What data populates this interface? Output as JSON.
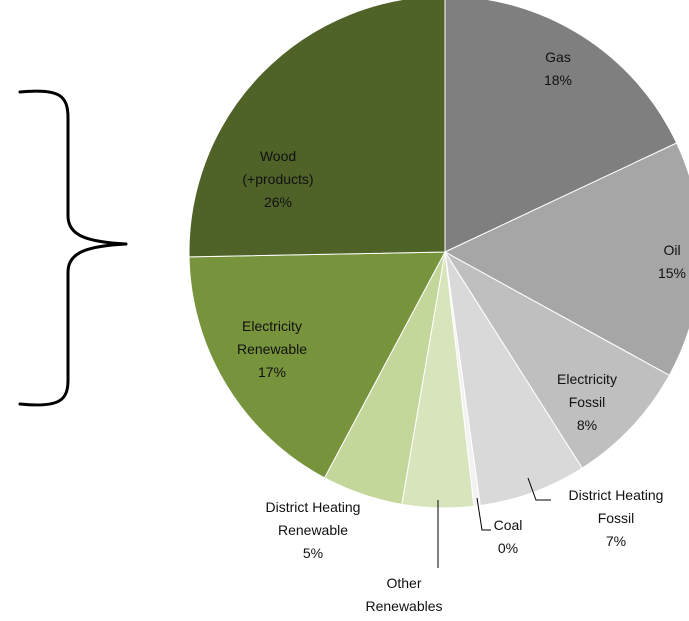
{
  "chart_data": {
    "type": "pie",
    "title": "",
    "slices": [
      {
        "name": "Gas",
        "label_lines": [
          "Gas",
          "18%"
        ],
        "percent": 18,
        "color": "#7f7f7f"
      },
      {
        "name": "Oil",
        "label_lines": [
          "Oil",
          "15%"
        ],
        "percent": 15,
        "color": "#a6a6a6"
      },
      {
        "name": "Electricity Fossil",
        "label_lines": [
          "Electricity",
          "Fossil",
          "8%"
        ],
        "percent": 8,
        "color": "#bfbfbf"
      },
      {
        "name": "District Heating Fossil",
        "label_lines": [
          "District Heating",
          "Fossil",
          "7%"
        ],
        "percent": 7,
        "color": "#d9d9d9"
      },
      {
        "name": "Coal",
        "label_lines": [
          "Coal",
          "0%"
        ],
        "percent": 0,
        "color": "#f2f2f2"
      },
      {
        "name": "Other Renewables",
        "label_lines": [
          "Other",
          "Renewables"
        ],
        "percent": 4,
        "color": "#d8e4bc"
      },
      {
        "name": "District Heating Renewable",
        "label_lines": [
          "District Heating",
          "Renewable",
          "5%"
        ],
        "percent": 5,
        "color": "#c4d79b"
      },
      {
        "name": "Electricity Renewable",
        "label_lines": [
          "Electricity",
          "Renewable",
          "17%"
        ],
        "percent": 17,
        "color": "#77933c"
      },
      {
        "name": "Wood (+products)",
        "label_lines": [
          "Wood",
          "(+products)",
          "26%"
        ],
        "percent": 26,
        "color": "#4f6228"
      }
    ],
    "start_angle_deg": 0,
    "direction": "clockwise",
    "legend": "none",
    "annotation": "curly brace grouping renewable slices on left"
  }
}
